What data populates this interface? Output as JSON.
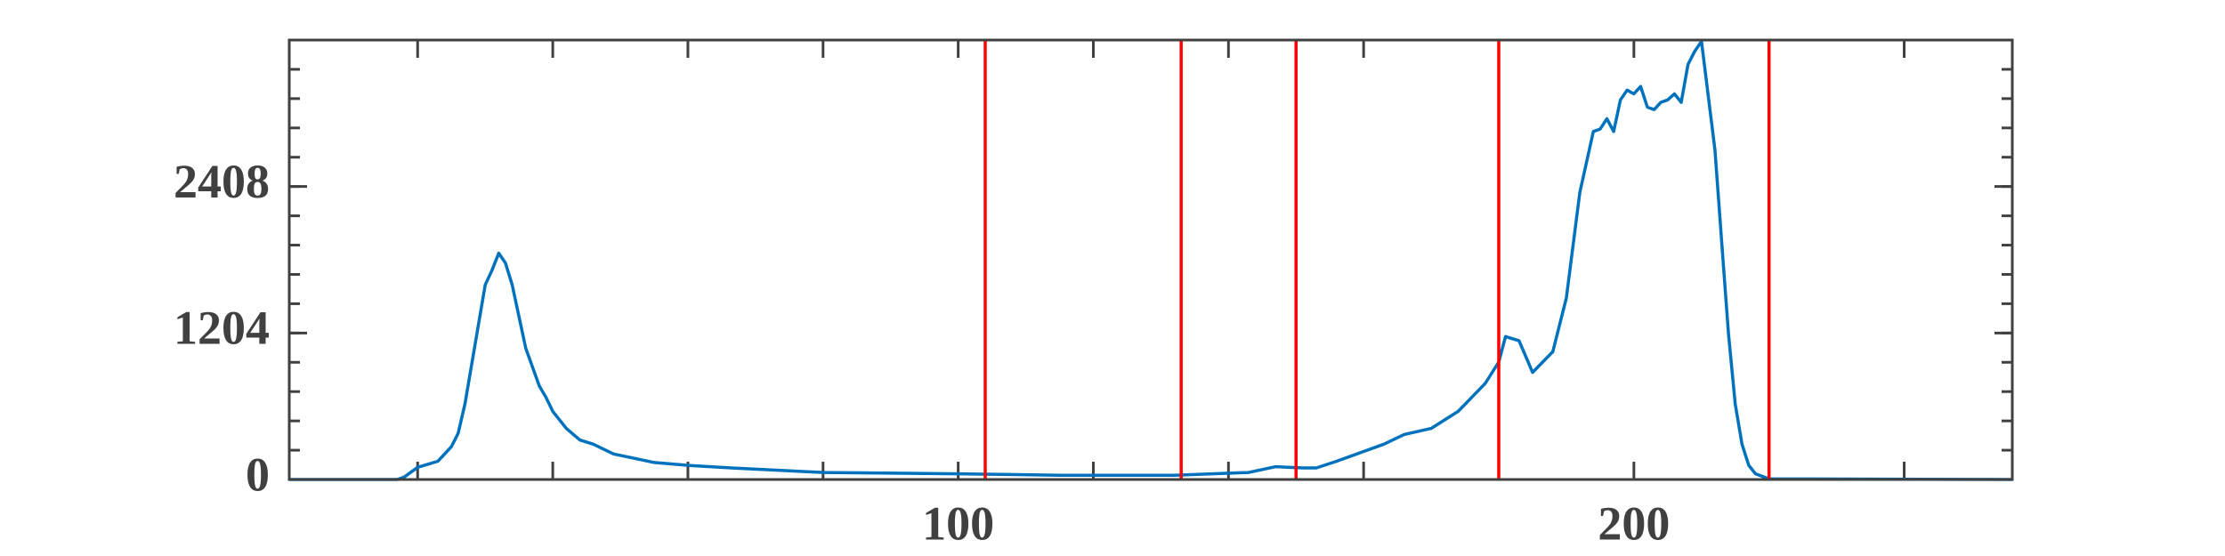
{
  "chart_data": {
    "type": "line",
    "x": [
      1,
      17,
      18,
      20,
      23,
      25,
      26,
      27,
      30,
      31,
      32,
      33,
      34,
      36,
      38,
      39,
      40,
      42,
      44,
      46,
      49,
      52,
      55,
      60,
      67,
      80,
      100,
      115,
      132,
      143,
      147,
      151,
      153,
      156,
      160,
      163,
      166,
      170,
      174,
      176,
      178,
      180,
      181,
      183,
      185,
      188,
      190,
      192,
      194,
      195,
      196,
      197,
      198,
      199,
      200,
      201,
      202,
      203,
      204,
      205,
      206,
      207,
      208,
      209,
      210,
      212,
      213,
      214,
      215,
      216,
      217,
      218,
      220,
      256
    ],
    "series": [
      {
        "color": "#0072bd",
        "values": [
          0,
          0,
          20,
          100,
          150,
          270,
          380,
          620,
          1600,
          1720,
          1860,
          1780,
          1600,
          1080,
          770,
          675,
          560,
          420,
          325,
          290,
          210,
          175,
          140,
          116,
          93,
          58,
          47,
          35,
          35,
          58,
          105,
          95,
          95,
          150,
          230,
          290,
          370,
          420,
          560,
          675,
          790,
          965,
          1175,
          1140,
          880,
          1050,
          1490,
          2360,
          2860,
          2880,
          2965,
          2860,
          3120,
          3200,
          3170,
          3230,
          3060,
          3040,
          3100,
          3120,
          3170,
          3100,
          3410,
          3520,
          3600,
          2710,
          1950,
          1200,
          620,
          290,
          116,
          47,
          5,
          0
        ]
      }
    ],
    "vlines": [
      104,
      133,
      150,
      180,
      220
    ],
    "vline_color": "#ff0000",
    "xlim": [
      1,
      256
    ],
    "xticks": [
      100,
      200
    ],
    "ylim": [
      0,
      3612
    ],
    "yticks": [
      0,
      1204,
      2408
    ]
  }
}
